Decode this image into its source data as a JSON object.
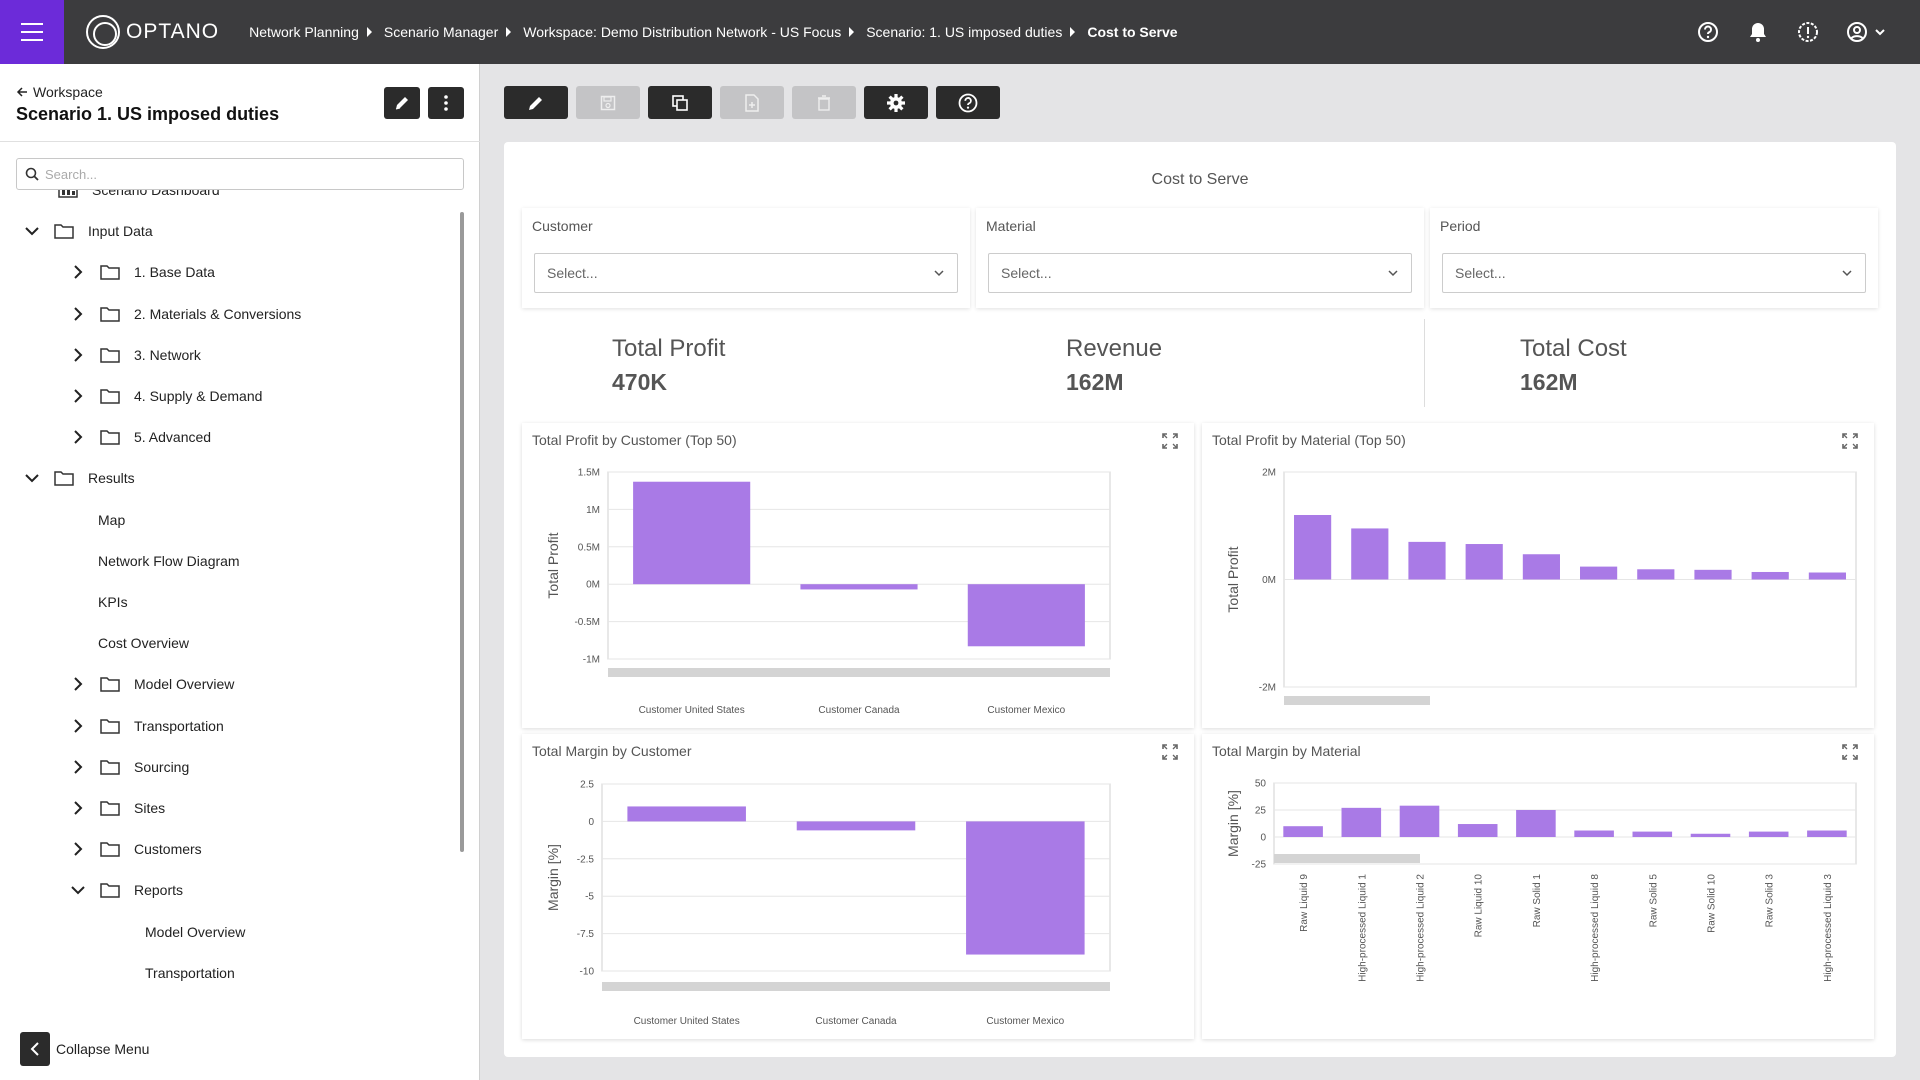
{
  "topbar": {
    "logo_text": "OPTANO",
    "breadcrumbs": [
      {
        "label": "Network Planning"
      },
      {
        "label": "Scenario Manager"
      },
      {
        "label": "Workspace: Demo Distribution Network - US Focus"
      },
      {
        "label": "Scenario: 1. US imposed duties"
      },
      {
        "label": "Cost to Serve"
      }
    ],
    "icons": [
      "help-icon",
      "bell-icon",
      "alert-icon",
      "user-icon",
      "chevron-down-icon"
    ]
  },
  "sidebar": {
    "back_label": "Workspace",
    "title": "Scenario 1. US imposed duties",
    "search_placeholder": "Search...",
    "tree": [
      {
        "label": "Scenario Dashboard",
        "level": 1,
        "type": "dashboard",
        "expanded": null
      },
      {
        "label": "Input Data",
        "level": 0,
        "type": "folder",
        "expanded": true
      },
      {
        "label": "1. Base Data",
        "level": 1,
        "type": "folder",
        "expanded": false
      },
      {
        "label": "2. Materials & Conversions",
        "level": 1,
        "type": "folder",
        "expanded": false
      },
      {
        "label": "3. Network",
        "level": 1,
        "type": "folder",
        "expanded": false
      },
      {
        "label": "4. Supply & Demand",
        "level": 1,
        "type": "folder",
        "expanded": false
      },
      {
        "label": "5. Advanced",
        "level": 1,
        "type": "folder",
        "expanded": false
      },
      {
        "label": "Results",
        "level": 0,
        "type": "folder",
        "expanded": true
      },
      {
        "label": "Map",
        "level": 1,
        "type": "page",
        "expanded": null
      },
      {
        "label": "Network Flow Diagram",
        "level": 1,
        "type": "page",
        "expanded": null
      },
      {
        "label": "KPIs",
        "level": 1,
        "type": "page",
        "expanded": null
      },
      {
        "label": "Cost Overview",
        "level": 1,
        "type": "page",
        "expanded": null
      },
      {
        "label": "Model Overview",
        "level": 1,
        "type": "folder",
        "expanded": false
      },
      {
        "label": "Transportation",
        "level": 1,
        "type": "folder",
        "expanded": false
      },
      {
        "label": "Sourcing",
        "level": 1,
        "type": "folder",
        "expanded": false
      },
      {
        "label": "Sites",
        "level": 1,
        "type": "folder",
        "expanded": false
      },
      {
        "label": "Customers",
        "level": 1,
        "type": "folder",
        "expanded": false
      },
      {
        "label": "Reports",
        "level": 1,
        "type": "folder",
        "expanded": true
      },
      {
        "label": "Model Overview",
        "level": 2,
        "type": "page",
        "expanded": null
      },
      {
        "label": "Transportation",
        "level": 2,
        "type": "page",
        "expanded": null
      }
    ],
    "collapse_label": "Collapse Menu"
  },
  "toolbar": {
    "buttons": [
      {
        "name": "edit-button",
        "icon": "pencil-icon",
        "enabled": true
      },
      {
        "name": "save-button",
        "icon": "floppy-icon",
        "enabled": false
      },
      {
        "name": "copy-button",
        "icon": "copy-icon",
        "enabled": true
      },
      {
        "name": "export-button",
        "icon": "file-icon",
        "enabled": false
      },
      {
        "name": "delete-button",
        "icon": "trash-icon",
        "enabled": false
      },
      {
        "name": "settings-button",
        "icon": "gear-icon",
        "enabled": true
      },
      {
        "name": "help-button",
        "icon": "help-icon",
        "enabled": true
      }
    ]
  },
  "dashboard": {
    "title": "Cost to Serve",
    "filters": [
      {
        "label": "Customer",
        "value": "Select..."
      },
      {
        "label": "Material",
        "value": "Select..."
      },
      {
        "label": "Period",
        "value": "Select..."
      }
    ],
    "kpis": [
      {
        "label": "Total Profit",
        "value": "470K"
      },
      {
        "label": "Revenue",
        "value": "162M"
      },
      {
        "label": "Total Cost",
        "value": "162M"
      }
    ],
    "accent_color": "#a97ae6"
  },
  "chart_data": [
    {
      "type": "bar",
      "title": "Total Profit by Customer (Top 50)",
      "ylabel": "Total Profit",
      "xlabel": "",
      "categories": [
        "Customer United States",
        "Customer Canada",
        "Customer Mexico"
      ],
      "values": [
        1.37,
        -0.07,
        -0.83
      ],
      "ylim": [
        -1,
        1.5
      ],
      "yticks": [
        "1.5M",
        "1M",
        "0.5M",
        "0M",
        "-0.5M",
        "-1M"
      ],
      "grid": true
    },
    {
      "type": "bar",
      "title": "Total Profit by Material (Top 50)",
      "ylabel": "Total Profit",
      "xlabel": "",
      "categories": [
        "",
        "",
        "",
        "",
        "",
        "",
        "",
        "",
        "",
        ""
      ],
      "values": [
        1.2,
        0.95,
        0.7,
        0.66,
        0.47,
        0.24,
        0.19,
        0.18,
        0.14,
        0.13
      ],
      "ylim": [
        -2,
        2
      ],
      "yticks": [
        "2M",
        "0M",
        "-2M"
      ],
      "grid": true
    },
    {
      "type": "bar",
      "title": "Total Margin by Customer",
      "ylabel": "Margin [%]",
      "xlabel": "",
      "categories": [
        "Customer United States",
        "Customer Canada",
        "Customer Mexico"
      ],
      "values": [
        1.0,
        -0.6,
        -8.9
      ],
      "ylim": [
        -10,
        2.5
      ],
      "yticks": [
        "2.5",
        "0",
        "-2.5",
        "-5",
        "-7.5",
        "-10"
      ],
      "grid": true
    },
    {
      "type": "bar",
      "title": "Total Margin by Material",
      "ylabel": "Margin [%]",
      "xlabel": "",
      "categories": [
        "Raw Liquid 9",
        "High-processed Liquid 1",
        "High-processed Liquid 2",
        "Raw Liquid 10",
        "Raw Solid 1",
        "High-processed Liquid 8",
        "Raw Solid 5",
        "Raw Solid 10",
        "Raw Solid 3",
        "High-processed Liquid 3"
      ],
      "values": [
        10,
        27,
        29,
        12,
        25,
        6,
        5,
        3,
        5,
        6
      ],
      "ylim": [
        -25,
        50
      ],
      "yticks": [
        "50",
        "25",
        "0",
        "-25"
      ],
      "grid": true
    }
  ]
}
